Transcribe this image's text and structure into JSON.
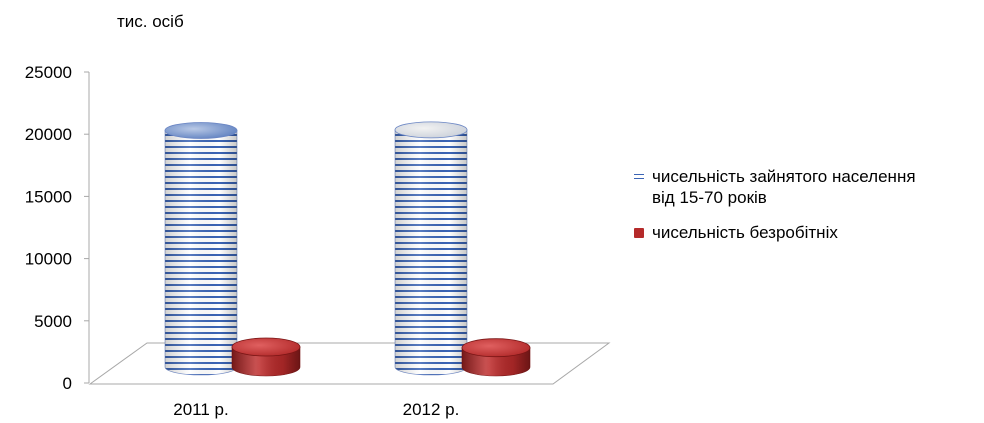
{
  "chart_data": {
    "type": "bar",
    "title": "",
    "ylabel": "тис. осіб",
    "xlabel": "",
    "ylim": [
      0,
      25000
    ],
    "yticks": [
      0,
      5000,
      10000,
      15000,
      20000,
      25000
    ],
    "categories": [
      "2011 р.",
      "2012 р."
    ],
    "series": [
      {
        "name": "чисельність зайнятого населення від 15-70 років",
        "values": [
          20300,
          20350
        ],
        "color": "#3b64b5"
      },
      {
        "name": "чисельність безробітніх",
        "values": [
          1750,
          1650
        ],
        "color": "#b52a2a"
      }
    ],
    "grid": false,
    "legend": "right"
  },
  "legend": {
    "items": [
      {
        "line1": "чисельність зайнятого населення",
        "line2": "від 15-70 років"
      },
      {
        "line1": "чисельність безробітніх"
      }
    ]
  }
}
